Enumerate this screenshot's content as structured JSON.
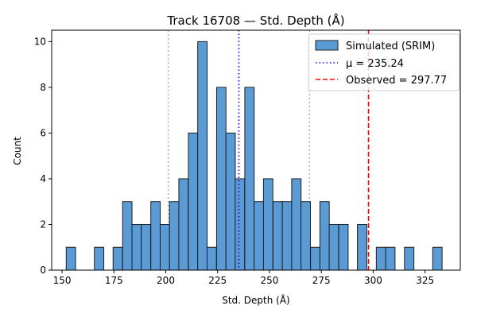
{
  "chart_data": {
    "type": "bar",
    "title": "Track 16708 — Std. Depth (Å)",
    "xlabel": "Std. Depth (Å)",
    "ylabel": "Count",
    "xlim": [
      145,
      342
    ],
    "ylim": [
      0,
      10.5
    ],
    "x_ticks": [
      150,
      175,
      200,
      225,
      250,
      275,
      300,
      325
    ],
    "y_ticks": [
      0,
      2,
      4,
      6,
      8,
      10
    ],
    "grid": false,
    "legend_position": "top-right",
    "bin_width": 4.53,
    "series": [
      {
        "name": "Simulated (SRIM)",
        "color": "#5b9bd5",
        "edge_color": "#1f1f1f",
        "bins": [
          {
            "x0": 152.0,
            "count": 1
          },
          {
            "x0": 165.6,
            "count": 1
          },
          {
            "x0": 174.6,
            "count": 1
          },
          {
            "x0": 179.2,
            "count": 3
          },
          {
            "x0": 183.7,
            "count": 2
          },
          {
            "x0": 188.2,
            "count": 2
          },
          {
            "x0": 192.8,
            "count": 3
          },
          {
            "x0": 197.3,
            "count": 2
          },
          {
            "x0": 201.8,
            "count": 3
          },
          {
            "x0": 206.3,
            "count": 4
          },
          {
            "x0": 210.9,
            "count": 6
          },
          {
            "x0": 215.4,
            "count": 10
          },
          {
            "x0": 219.9,
            "count": 1
          },
          {
            "x0": 224.5,
            "count": 8
          },
          {
            "x0": 229.0,
            "count": 6
          },
          {
            "x0": 233.5,
            "count": 4
          },
          {
            "x0": 238.1,
            "count": 8
          },
          {
            "x0": 242.6,
            "count": 3
          },
          {
            "x0": 247.1,
            "count": 4
          },
          {
            "x0": 251.7,
            "count": 3
          },
          {
            "x0": 256.2,
            "count": 3
          },
          {
            "x0": 260.7,
            "count": 4
          },
          {
            "x0": 265.2,
            "count": 3
          },
          {
            "x0": 269.8,
            "count": 1
          },
          {
            "x0": 274.3,
            "count": 3
          },
          {
            "x0": 278.8,
            "count": 2
          },
          {
            "x0": 283.4,
            "count": 2
          },
          {
            "x0": 292.4,
            "count": 2
          },
          {
            "x0": 301.5,
            "count": 1
          },
          {
            "x0": 306.0,
            "count": 1
          },
          {
            "x0": 315.1,
            "count": 1
          },
          {
            "x0": 328.7,
            "count": 1
          }
        ]
      }
    ],
    "lines": [
      {
        "name": "μ = 235.24",
        "x": 235.24,
        "color": "#0000ff",
        "style": "dotted"
      },
      {
        "name": "Observed = 297.77",
        "x": 297.77,
        "color": "#ff0000",
        "style": "dashed"
      }
    ],
    "guide_lines": [
      {
        "x": 201.2,
        "color": "#b0b0b0",
        "style": "dotted"
      },
      {
        "x": 269.3,
        "color": "#b0b0b0",
        "style": "dotted"
      }
    ]
  }
}
